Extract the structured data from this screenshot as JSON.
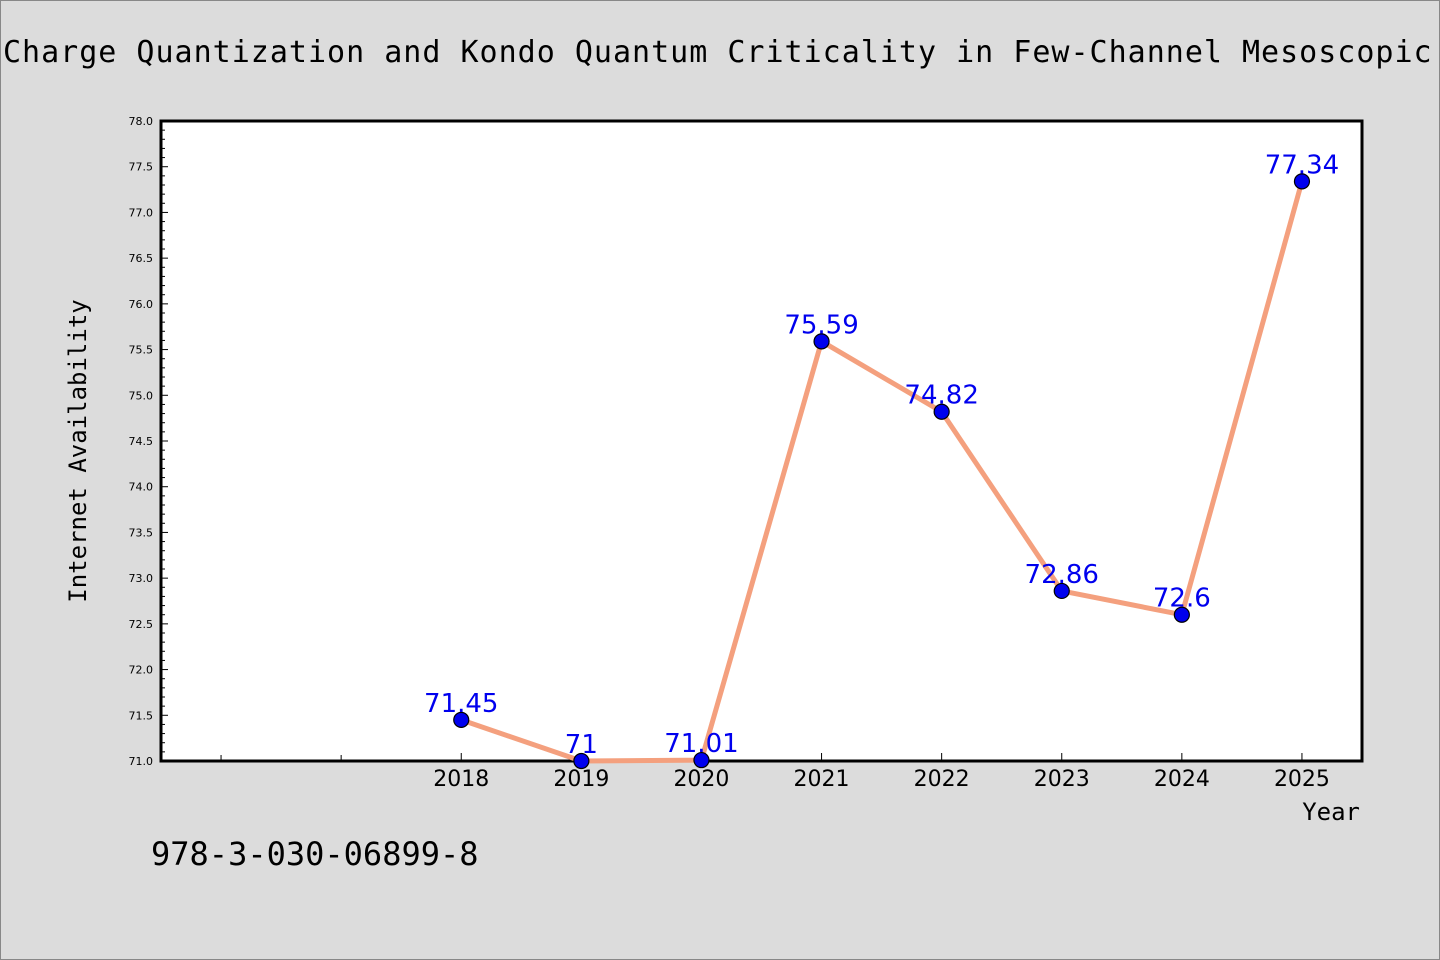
{
  "colors": {
    "background": "#dcdcdc",
    "plot_background": "#ffffff",
    "line": "#f4a07e",
    "marker": "#0000ee",
    "data_label": "#0000ee"
  },
  "chart_data": {
    "type": "line",
    "title": "Charge Quantization and Kondo Quantum Criticality in Few-Channel Mesoscopic Circ",
    "xlabel": "Year",
    "ylabel": "Internet Availability",
    "x": [
      "2018",
      "2019",
      "2020",
      "2021",
      "2022",
      "2023",
      "2024",
      "2025"
    ],
    "x_data_positions": [
      3,
      4,
      5,
      6,
      7,
      8,
      9,
      10
    ],
    "x_minor_ticks": [
      1,
      2
    ],
    "x_range": [
      0.5,
      10.5
    ],
    "series": [
      {
        "values": [
          71.45,
          71.0,
          71.01,
          75.59,
          74.82,
          72.86,
          72.6,
          77.34
        ],
        "labels": [
          "71.45",
          "71",
          "71.01",
          "75.59",
          "74.82",
          "72.86",
          "72.6",
          "77.34"
        ]
      }
    ],
    "ylim": [
      71.0,
      78.0
    ],
    "yticks": [
      "71.0",
      "71.5",
      "72.0",
      "72.5",
      "73.0",
      "73.5",
      "74.0",
      "74.5",
      "75.0",
      "75.5",
      "76.0",
      "76.5",
      "77.0",
      "77.5",
      "78.0"
    ],
    "grid": false,
    "legend": "none"
  },
  "footer": {
    "isbn": "978-3-030-06899-8"
  }
}
